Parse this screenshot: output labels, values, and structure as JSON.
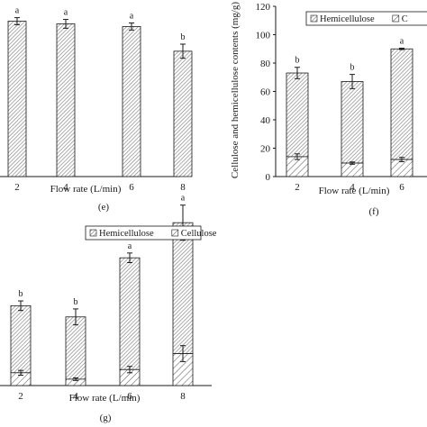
{
  "colors": {
    "hatch": "#8a8a8a",
    "axis": "#1a1a1a",
    "bar_fill": "#ffffff"
  },
  "chart_data": [
    {
      "id": "e",
      "panel_label": "(e)",
      "type": "bar",
      "categories": [
        "2",
        "4",
        "6",
        "8"
      ],
      "xlabel": "Flow rate (L/min)",
      "values": [
        88,
        86.5,
        85,
        71
      ],
      "errors": [
        2,
        2.5,
        2,
        4
      ],
      "significance": [
        "a",
        "a",
        "a",
        "b"
      ],
      "ylim": [
        0,
        100
      ],
      "grid": false
    },
    {
      "id": "f",
      "panel_label": "(f)",
      "type": "bar",
      "stacked": true,
      "categories": [
        "2",
        "4",
        "6"
      ],
      "xlabel": "Flow rate (L/min)",
      "ylabel": "Cellulose and hemicellulose contents (mg/g)",
      "y_ticks": [
        "0",
        "20",
        "40",
        "60",
        "80",
        "100",
        "120"
      ],
      "ylim": [
        0,
        120
      ],
      "legend_entries": [
        "Hemicellulose",
        "C"
      ],
      "legend_position": "top-right",
      "series": [
        {
          "name": "Cellulose",
          "values": [
            14,
            9.5,
            12
          ],
          "errors": [
            2,
            0.8,
            1.5
          ]
        },
        {
          "name": "Hemicellulose",
          "values": [
            59,
            57.5,
            78
          ],
          "errors": [
            4,
            5,
            0.5
          ]
        }
      ],
      "significance": [
        "b",
        "b",
        "a"
      ],
      "grid": false
    },
    {
      "id": "g",
      "panel_label": "(g)",
      "type": "bar",
      "stacked": true,
      "categories": [
        "2",
        "4",
        "6",
        "8"
      ],
      "xlabel": "Flow rate (L/min)",
      "legend_entries": [
        "Hemicellulose",
        "Cellulose"
      ],
      "legend_position": "top-right",
      "series": [
        {
          "name": "Cellulose",
          "values": [
            8,
            4,
            10,
            20
          ],
          "errors": [
            1.5,
            0.8,
            2,
            5
          ]
        },
        {
          "name": "Hemicellulose",
          "values": [
            42,
            39,
            70,
            82
          ],
          "errors": [
            3,
            5,
            3,
            11
          ]
        }
      ],
      "significance": [
        "b",
        "b",
        "a",
        "a"
      ],
      "ylim": [
        0,
        110
      ],
      "grid": false
    }
  ]
}
